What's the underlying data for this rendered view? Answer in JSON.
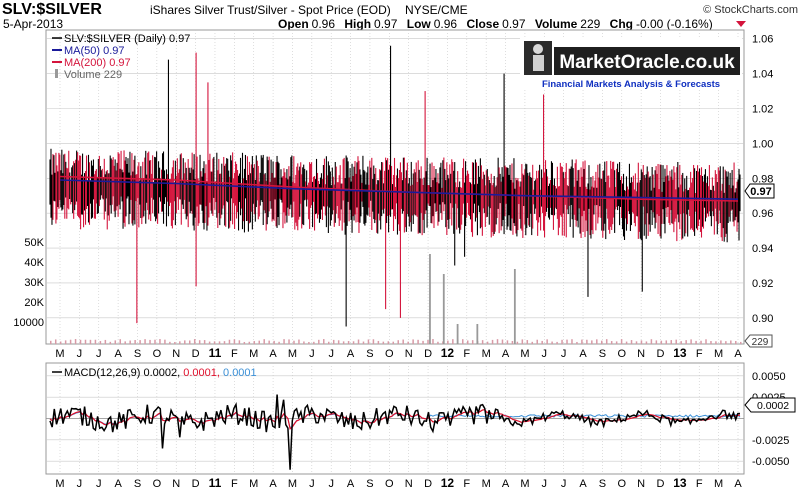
{
  "header": {
    "symbol": "SLV:$SILVER",
    "description": "iShares Silver Trust/Silver - Spot Price (EOD)",
    "exchange": "NYSE/CME",
    "source": "© StockCharts.com",
    "date": "5-Apr-2013",
    "stats": [
      {
        "label": "Open",
        "value": "0.96"
      },
      {
        "label": "High",
        "value": "0.97"
      },
      {
        "label": "Low",
        "value": "0.96"
      },
      {
        "label": "Close",
        "value": "0.97"
      },
      {
        "label": "Volume",
        "value": "229"
      },
      {
        "label": "Chg",
        "value": "-0.00 (-0.16%)"
      }
    ]
  },
  "legend": [
    {
      "text": "SLV:$SILVER (Daily) 0.97",
      "color": "#000000"
    },
    {
      "text": "MA(50) 0.97",
      "color": "#1a1a9a"
    },
    {
      "text": "MA(200) 0.97",
      "color": "#d4143c"
    },
    {
      "text": "Volume 229",
      "color": "#888888"
    }
  ],
  "watermark": {
    "title": "MarketOracle.co.uk",
    "subtitle": "Financial Markets Analysis & Forecasts"
  },
  "price_badge": "0.97",
  "volume_badge": "229",
  "macd_legend": {
    "label": "MACD(12,26,9)",
    "macd": "0.0002,",
    "signal": "0.0001,",
    "hist": "0.0001",
    "macd_color": "#000000",
    "signal_color": "#e0102c",
    "hist_color": "#3a8fd6"
  },
  "macd_badge": "0.0002",
  "months": [
    "M",
    "J",
    "J",
    "A",
    "S",
    "O",
    "N",
    "D",
    "11",
    "F",
    "M",
    "A",
    "M",
    "J",
    "J",
    "A",
    "S",
    "O",
    "N",
    "D",
    "12",
    "F",
    "M",
    "A",
    "M",
    "J",
    "J",
    "A",
    "S",
    "O",
    "N",
    "D",
    "13",
    "F",
    "M",
    "A"
  ],
  "colors": {
    "up": "#000000",
    "down": "#d4143c",
    "ma50": "#1a1a9a",
    "ma200": "#d4143c",
    "volume": "#999999",
    "grid": "#c8c8c8"
  },
  "chart_data": [
    {
      "type": "line",
      "title": "SLV:$SILVER iShares Silver Trust/Silver - Spot Price (EOD)",
      "x_range": [
        "2010-05",
        "2013-04-05"
      ],
      "y_axis_ticks": [
        "0.90",
        "0.92",
        "0.94",
        "0.96",
        "0.98",
        "1.00",
        "1.02",
        "1.04",
        "1.06"
      ],
      "ylim": [
        0.885,
        1.065
      ],
      "volume_axis_ticks": [
        "10000",
        "20K",
        "30K",
        "40K",
        "50K"
      ],
      "series": [
        {
          "name": "SLV:$SILVER (Daily)",
          "last": 0.97,
          "baseline": 0.975,
          "range": [
            0.89,
            1.05
          ]
        },
        {
          "name": "MA(50)",
          "last": 0.97,
          "points": [
            [
              0,
              0.979
            ],
            [
              6,
              0.977
            ],
            [
              12,
              0.974
            ],
            [
              18,
              0.972
            ],
            [
              24,
              0.97
            ],
            [
              30,
              0.969
            ],
            [
              35,
              0.968
            ]
          ]
        },
        {
          "name": "MA(200)",
          "last": 0.97,
          "points": [
            [
              0,
              0.981
            ],
            [
              6,
              0.979
            ],
            [
              12,
              0.975
            ],
            [
              18,
              0.972
            ],
            [
              24,
              0.97
            ],
            [
              30,
              0.968
            ],
            [
              35,
              0.967
            ]
          ]
        },
        {
          "name": "Volume",
          "last": 229
        }
      ]
    },
    {
      "type": "line",
      "title": "MACD(12,26,9)",
      "y_axis_ticks": [
        "-0.0050",
        "-0.0025",
        "0.0025",
        "0.0050"
      ],
      "ylim": [
        -0.0065,
        0.0065
      ],
      "series": [
        {
          "name": "MACD",
          "last": 0.0002
        },
        {
          "name": "Signal",
          "last": 0.0001
        },
        {
          "name": "Histogram",
          "last": 0.0001
        }
      ]
    }
  ]
}
